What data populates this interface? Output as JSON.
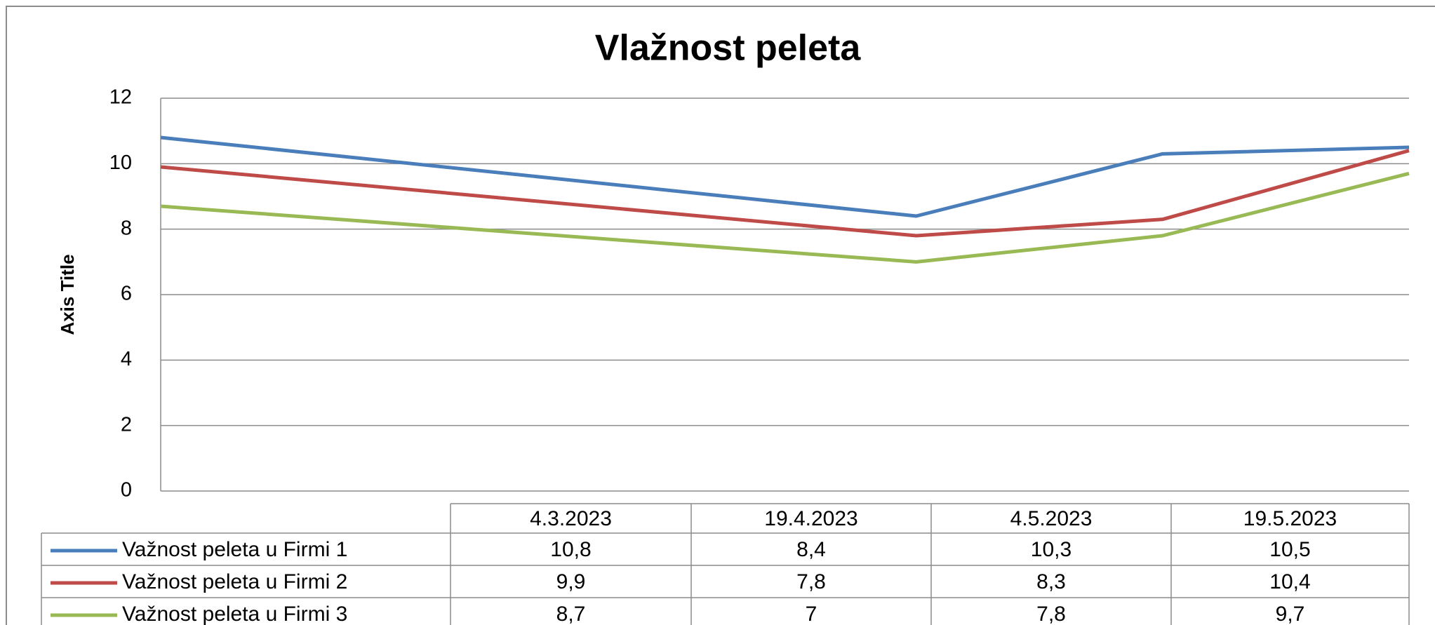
{
  "chart_data": {
    "type": "line",
    "title": "Vlažnost peleta",
    "y_label": "Axis Title",
    "categories": [
      "4.3.2023",
      "19.4.2023",
      "4.5.2023",
      "19.5.2023"
    ],
    "series": [
      {
        "name": "Važnost peleta u Firmi 1",
        "color": "#4a7ebb",
        "values": [
          10.8,
          8.4,
          10.3,
          10.5
        ],
        "value_labels": [
          "10,8",
          "8,4",
          "10,3",
          "10,5"
        ]
      },
      {
        "name": "Važnost peleta u Firmi 2",
        "color": "#be4b48",
        "values": [
          9.9,
          7.8,
          8.3,
          10.4
        ],
        "value_labels": [
          "9,9",
          "7,8",
          "8,3",
          "10,4"
        ]
      },
      {
        "name": "Važnost peleta u Firmi 3",
        "color": "#98b954",
        "values": [
          8.7,
          7,
          7.8,
          9.7
        ],
        "value_labels": [
          "8,7",
          "7",
          "7,8",
          "9,7"
        ]
      }
    ],
    "ylim": [
      0,
      12
    ],
    "yticks": [
      0,
      2,
      4,
      6,
      8,
      10,
      12
    ],
    "grid": true
  }
}
